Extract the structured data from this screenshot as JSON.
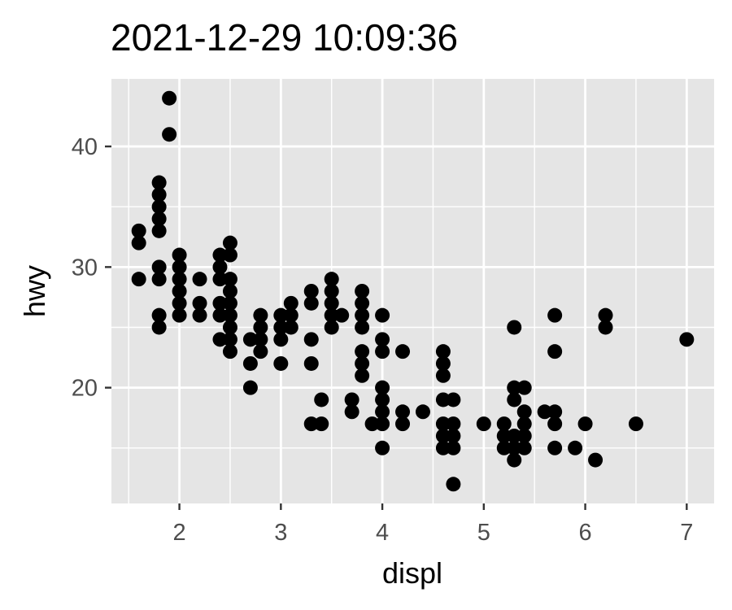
{
  "chart_data": {
    "type": "scatter",
    "title": "2021-12-29 10:09:36",
    "xlabel": "displ",
    "ylabel": "hwy",
    "xlim": [
      1.33,
      7.27
    ],
    "ylim": [
      10.4,
      45.6
    ],
    "x_ticks": [
      2,
      3,
      4,
      5,
      6,
      7
    ],
    "x_tick_labels": [
      "2",
      "3",
      "4",
      "5",
      "6",
      "7"
    ],
    "y_ticks": [
      20,
      30,
      40
    ],
    "y_tick_labels": [
      "20",
      "30",
      "40"
    ],
    "grid": true,
    "background": "#e5e5e5",
    "grid_color": "#ffffff",
    "point_color": "#000000",
    "points": [
      [
        1.6,
        33
      ],
      [
        1.6,
        32
      ],
      [
        1.6,
        29
      ],
      [
        1.8,
        37
      ],
      [
        1.8,
        36
      ],
      [
        1.8,
        35
      ],
      [
        1.8,
        34
      ],
      [
        1.8,
        33
      ],
      [
        1.8,
        30
      ],
      [
        1.8,
        29
      ],
      [
        1.8,
        26
      ],
      [
        1.8,
        25
      ],
      [
        1.9,
        44
      ],
      [
        1.9,
        41
      ],
      [
        2.0,
        31
      ],
      [
        2.0,
        30
      ],
      [
        2.0,
        29
      ],
      [
        2.0,
        28
      ],
      [
        2.0,
        27
      ],
      [
        2.0,
        26
      ],
      [
        2.2,
        29
      ],
      [
        2.2,
        27
      ],
      [
        2.2,
        26
      ],
      [
        2.4,
        31
      ],
      [
        2.4,
        30
      ],
      [
        2.4,
        29
      ],
      [
        2.4,
        27
      ],
      [
        2.4,
        26
      ],
      [
        2.4,
        24
      ],
      [
        2.5,
        32
      ],
      [
        2.5,
        31
      ],
      [
        2.5,
        29
      ],
      [
        2.5,
        28
      ],
      [
        2.5,
        27
      ],
      [
        2.5,
        26
      ],
      [
        2.5,
        25
      ],
      [
        2.5,
        24
      ],
      [
        2.5,
        23
      ],
      [
        2.7,
        24
      ],
      [
        2.7,
        22
      ],
      [
        2.7,
        20
      ],
      [
        2.8,
        26
      ],
      [
        2.8,
        25
      ],
      [
        2.8,
        24
      ],
      [
        2.8,
        23
      ],
      [
        3.0,
        26
      ],
      [
        3.0,
        25
      ],
      [
        3.0,
        24
      ],
      [
        3.0,
        22
      ],
      [
        3.1,
        27
      ],
      [
        3.1,
        26
      ],
      [
        3.1,
        25
      ],
      [
        3.3,
        28
      ],
      [
        3.3,
        27
      ],
      [
        3.3,
        24
      ],
      [
        3.3,
        22
      ],
      [
        3.3,
        17
      ],
      [
        3.4,
        19
      ],
      [
        3.4,
        17
      ],
      [
        3.5,
        29
      ],
      [
        3.5,
        28
      ],
      [
        3.5,
        27
      ],
      [
        3.5,
        26
      ],
      [
        3.5,
        25
      ],
      [
        3.6,
        26
      ],
      [
        3.7,
        19
      ],
      [
        3.7,
        18
      ],
      [
        3.8,
        28
      ],
      [
        3.8,
        27
      ],
      [
        3.8,
        26
      ],
      [
        3.8,
        25
      ],
      [
        3.8,
        23
      ],
      [
        3.8,
        22
      ],
      [
        3.8,
        21
      ],
      [
        3.9,
        17
      ],
      [
        4.0,
        26
      ],
      [
        4.0,
        24
      ],
      [
        4.0,
        23
      ],
      [
        4.0,
        20
      ],
      [
        4.0,
        19
      ],
      [
        4.0,
        18
      ],
      [
        4.0,
        17
      ],
      [
        4.0,
        15
      ],
      [
        4.2,
        23
      ],
      [
        4.2,
        18
      ],
      [
        4.2,
        17
      ],
      [
        4.4,
        18
      ],
      [
        4.6,
        23
      ],
      [
        4.6,
        22
      ],
      [
        4.6,
        21
      ],
      [
        4.6,
        19
      ],
      [
        4.6,
        17
      ],
      [
        4.6,
        16
      ],
      [
        4.6,
        15
      ],
      [
        4.7,
        19
      ],
      [
        4.7,
        17
      ],
      [
        4.7,
        16
      ],
      [
        4.7,
        15
      ],
      [
        4.7,
        12
      ],
      [
        5.0,
        17
      ],
      [
        5.2,
        17
      ],
      [
        5.2,
        16
      ],
      [
        5.2,
        15
      ],
      [
        5.3,
        25
      ],
      [
        5.3,
        20
      ],
      [
        5.3,
        19
      ],
      [
        5.3,
        16
      ],
      [
        5.3,
        15
      ],
      [
        5.3,
        14
      ],
      [
        5.4,
        20
      ],
      [
        5.4,
        18
      ],
      [
        5.4,
        17
      ],
      [
        5.4,
        16
      ],
      [
        5.4,
        15
      ],
      [
        5.6,
        18
      ],
      [
        5.7,
        26
      ],
      [
        5.7,
        23
      ],
      [
        5.7,
        18
      ],
      [
        5.7,
        17
      ],
      [
        5.7,
        15
      ],
      [
        5.9,
        15
      ],
      [
        6.0,
        17
      ],
      [
        6.1,
        14
      ],
      [
        6.2,
        26
      ],
      [
        6.2,
        25
      ],
      [
        6.5,
        17
      ],
      [
        7.0,
        24
      ]
    ]
  }
}
